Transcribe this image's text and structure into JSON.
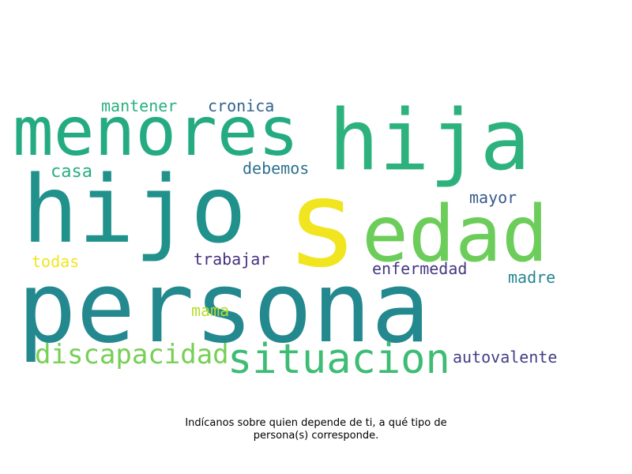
{
  "chart_data": {
    "type": "wordcloud",
    "words": [
      {
        "text": "persona",
        "color": "#23898e"
      },
      {
        "text": "hijo",
        "color": "#21918c"
      },
      {
        "text": "s",
        "color": "#f0e51f"
      },
      {
        "text": "menores",
        "color": "#25ab82"
      },
      {
        "text": "hija",
        "color": "#2db27d"
      },
      {
        "text": "edad",
        "color": "#6ccd5a"
      },
      {
        "text": "situacion",
        "color": "#3dbc74"
      },
      {
        "text": "discapacidad",
        "color": "#75d054"
      },
      {
        "text": "mantener",
        "color": "#2ab07f"
      },
      {
        "text": "cronica",
        "color": "#33638d"
      },
      {
        "text": "casa",
        "color": "#2aaf7f"
      },
      {
        "text": "debemos",
        "color": "#2d718e"
      },
      {
        "text": "mayor",
        "color": "#38598c"
      },
      {
        "text": "todas",
        "color": "#f1e51d"
      },
      {
        "text": "trabajar",
        "color": "#46327e"
      },
      {
        "text": "enfermedad",
        "color": "#453781"
      },
      {
        "text": "madre",
        "color": "#25858e"
      },
      {
        "text": "mama",
        "color": "#b5de2b"
      },
      {
        "text": "autovalente",
        "color": "#433e85"
      }
    ]
  },
  "caption": {
    "line1": "Indícanos sobre quien depende de ti, a qué tipo de",
    "line2": "persona(s) corresponde."
  }
}
